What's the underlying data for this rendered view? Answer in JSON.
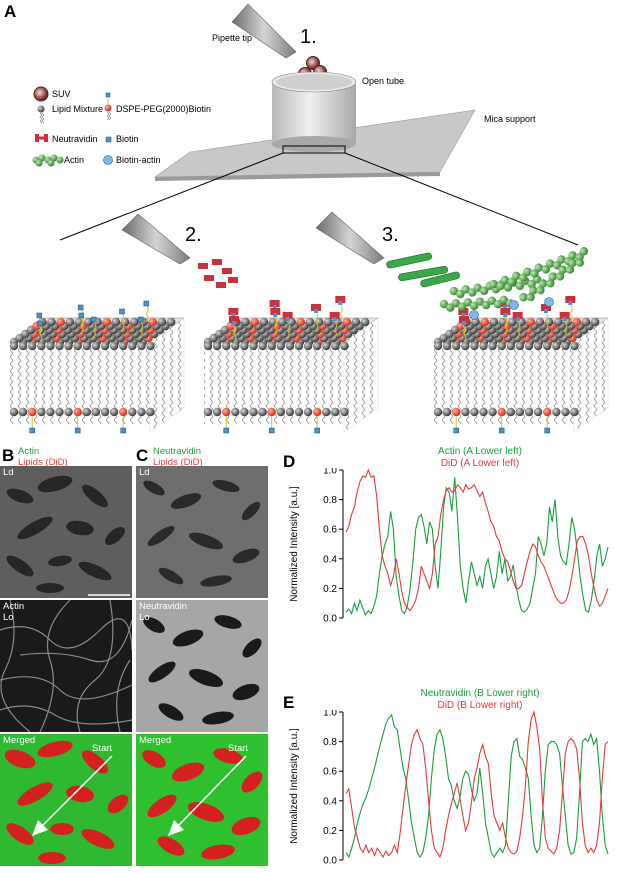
{
  "panel_labels": {
    "a": "A",
    "b": "B",
    "c": "C",
    "d": "D",
    "e": "E"
  },
  "schematic": {
    "pipette_tip": "Pipette tip",
    "open_tube": "Open tube",
    "mica_support": "Mica support",
    "steps": [
      "1.",
      "2.",
      "3."
    ],
    "legend": {
      "suv": "SUV",
      "lipid_mixture": "Lipid Mixture",
      "dspe_peg": "DSPE-PEG(2000)Biotin",
      "neutravidin": "Neutravidin",
      "biotin": "Biotin",
      "actin": "Actin",
      "biotin_actin": "Biotin-actin"
    },
    "colors": {
      "lipid_head": "#5a5a5a",
      "peg_head": "#e8371e",
      "biotin": "#4f8fd0",
      "neutravidin": "#c8323c",
      "actin": "#3aa84a"
    }
  },
  "panel_b": {
    "header_line1": "Actin",
    "header_line2": "Lipids (DiD)",
    "top_label": "Ld",
    "mid_label_1": "Actin",
    "mid_label_2": "Lo",
    "bottom_label": "Merged",
    "arrow_label": "Start"
  },
  "panel_c": {
    "header_line1": "Neutravidin",
    "header_line2": "Lipids (DiD)",
    "top_label": "Ld",
    "mid_label_1": "Neutravidin",
    "mid_label_2": "Lo",
    "bottom_label": "Merged",
    "arrow_label": "Start"
  },
  "chart_data": [
    {
      "type": "line",
      "panel": "D",
      "ylabel": "Normalized Intensity [a.u.]",
      "ylim": [
        0,
        1.0
      ],
      "yticks": [
        "0.0",
        "0.2",
        "0.4",
        "0.6",
        "0.8",
        "1.0"
      ],
      "series": [
        {
          "name": "Actin (A Lower left)",
          "color": "#1a9e3a",
          "values": [
            0.04,
            0.06,
            0.03,
            0.1,
            0.05,
            0.12,
            0.07,
            0.02,
            0.05,
            0.03,
            0.08,
            0.15,
            0.3,
            0.42,
            0.5,
            0.55,
            0.72,
            0.6,
            0.28,
            0.15,
            0.05,
            0.03,
            0.08,
            0.2,
            0.38,
            0.6,
            0.68,
            0.7,
            0.62,
            0.5,
            0.65,
            0.6,
            0.35,
            0.2,
            0.45,
            0.75,
            0.88,
            0.85,
            0.72,
            0.95,
            0.68,
            0.35,
            0.2,
            0.1,
            0.25,
            0.38,
            0.3,
            0.22,
            0.28,
            0.2,
            0.35,
            0.4,
            0.3,
            0.2,
            0.28,
            0.45,
            0.3,
            0.4,
            0.25,
            0.28,
            0.36,
            0.22,
            0.12,
            0.05,
            0.04,
            0.06,
            0.1,
            0.2,
            0.3,
            0.55,
            0.5,
            0.42,
            0.5,
            0.75,
            0.65,
            0.8,
            0.55,
            0.42,
            0.38,
            0.36,
            0.5,
            0.68,
            0.6,
            0.45,
            0.28,
            0.15,
            0.05,
            0.04,
            0.12,
            0.25,
            0.42,
            0.5,
            0.35,
            0.4,
            0.48
          ]
        },
        {
          "name": "DiD (A Lower left)",
          "color": "#e23b3b",
          "values": [
            0.58,
            0.62,
            0.7,
            0.75,
            0.85,
            0.92,
            0.96,
            0.95,
            1.0,
            0.95,
            0.96,
            0.82,
            0.6,
            0.42,
            0.35,
            0.3,
            0.22,
            0.28,
            0.4,
            0.3,
            0.18,
            0.1,
            0.07,
            0.05,
            0.08,
            0.12,
            0.2,
            0.35,
            0.3,
            0.25,
            0.2,
            0.3,
            0.5,
            0.55,
            0.7,
            0.8,
            0.86,
            0.88,
            0.85,
            0.86,
            0.9,
            0.88,
            0.85,
            0.9,
            0.87,
            0.88,
            0.9,
            0.86,
            0.82,
            0.85,
            0.78,
            0.72,
            0.65,
            0.62,
            0.55,
            0.52,
            0.45,
            0.4,
            0.38,
            0.32,
            0.25,
            0.2,
            0.2,
            0.22,
            0.3,
            0.38,
            0.45,
            0.5,
            0.48,
            0.42,
            0.38,
            0.35,
            0.3,
            0.25,
            0.2,
            0.15,
            0.12,
            0.1,
            0.1,
            0.12,
            0.18,
            0.28,
            0.4,
            0.52,
            0.55,
            0.55,
            0.5,
            0.42,
            0.3,
            0.2,
            0.12,
            0.08,
            0.1,
            0.15,
            0.2
          ]
        }
      ]
    },
    {
      "type": "line",
      "panel": "E",
      "ylabel": "Normalized Intensity [a.u.]",
      "ylim": [
        0,
        1.0
      ],
      "yticks": [
        "0.0",
        "0.2",
        "0.4",
        "0.6",
        "0.8",
        "1.0"
      ],
      "series": [
        {
          "name": "Neutravidin (B Lower right)",
          "color": "#1a9e3a",
          "values": [
            0.05,
            0.02,
            0.08,
            0.15,
            0.25,
            0.32,
            0.38,
            0.42,
            0.48,
            0.55,
            0.62,
            0.7,
            0.78,
            0.85,
            0.92,
            0.96,
            0.98,
            0.9,
            0.88,
            0.75,
            0.62,
            0.55,
            0.4,
            0.25,
            0.15,
            0.05,
            0.02,
            0.05,
            0.15,
            0.3,
            0.55,
            0.75,
            0.85,
            0.88,
            0.82,
            0.7,
            0.55,
            0.5,
            0.4,
            0.35,
            0.42,
            0.55,
            0.6,
            0.58,
            0.48,
            0.4,
            0.45,
            0.62,
            0.45,
            0.25,
            0.15,
            0.05,
            0.02,
            0.05,
            0.08,
            0.05,
            0.1,
            0.4,
            0.7,
            0.8,
            0.82,
            0.7,
            0.68,
            0.62,
            0.55,
            0.3,
            0.1,
            0.05,
            0.08,
            0.3,
            0.6,
            0.78,
            0.8,
            0.8,
            0.78,
            0.72,
            0.5,
            0.3,
            0.1,
            0.04,
            0.05,
            0.15,
            0.45,
            0.8,
            0.82,
            0.8,
            0.85,
            0.78,
            0.82,
            0.6,
            0.3,
            0.1,
            0.04
          ]
        },
        {
          "name": "DiD (B Lower right)",
          "color": "#e23b3b",
          "values": [
            0.45,
            0.48,
            0.35,
            0.22,
            0.15,
            0.08,
            0.05,
            0.1,
            0.05,
            0.08,
            0.03,
            0.08,
            0.05,
            0.02,
            0.06,
            0.03,
            0.05,
            0.1,
            0.05,
            0.18,
            0.35,
            0.5,
            0.65,
            0.78,
            0.85,
            0.88,
            0.82,
            0.78,
            0.62,
            0.4,
            0.2,
            0.08,
            0.05,
            0.02,
            0.08,
            0.2,
            0.3,
            0.38,
            0.45,
            0.52,
            0.42,
            0.3,
            0.2,
            0.25,
            0.38,
            0.55,
            0.62,
            0.72,
            0.78,
            0.7,
            0.65,
            0.45,
            0.3,
            0.25,
            0.2,
            0.25,
            0.15,
            0.08,
            0.05,
            0.04,
            0.06,
            0.15,
            0.3,
            0.5,
            0.8,
            0.95,
            1.0,
            0.9,
            0.75,
            0.4,
            0.15,
            0.08,
            0.06,
            0.04,
            0.08,
            0.2,
            0.45,
            0.72,
            0.8,
            0.82,
            0.8,
            0.75,
            0.55,
            0.25,
            0.1,
            0.05,
            0.08,
            0.05,
            0.1,
            0.25,
            0.55,
            0.78,
            0.8
          ]
        }
      ]
    }
  ]
}
